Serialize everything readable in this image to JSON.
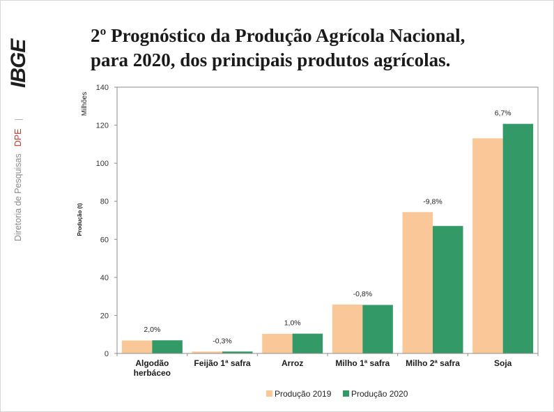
{
  "sidebar": {
    "logo_text": "IBGE",
    "department": "Diretoria de Pesquisas",
    "department_code": "DPE"
  },
  "title": {
    "line1": "2º Prognóstico da Produção Agrícola Nacional,",
    "line2": "para 2020, dos principais produtos agrícolas."
  },
  "colors": {
    "accent_red": "#c0392b",
    "axis": "#8c8c8c"
  },
  "chart_data": {
    "type": "bar",
    "categories": [
      "Algodão herbáceo",
      "Feijão 1ª safra",
      "Arroz",
      "Milho 1ª safra",
      "Milho 2ª safra",
      "Soja"
    ],
    "series": [
      {
        "name": "Produção 2019",
        "color": "#FAC898",
        "values": [
          6.8,
          1.0,
          10.3,
          25.7,
          74.3,
          113.1
        ]
      },
      {
        "name": "Produção 2020",
        "color": "#339966",
        "values": [
          6.9,
          1.0,
          10.4,
          25.5,
          67.0,
          120.7
        ]
      }
    ],
    "change_labels": [
      "2,0%",
      "-0,3%",
      "1,0%",
      "-0,8%",
      "-9,8%",
      "6,7%"
    ],
    "ylabel": "Produção (t)",
    "yunit": "Milhões",
    "ylim": [
      0,
      140
    ],
    "yticks": [
      0,
      20,
      40,
      60,
      80,
      100,
      120,
      140
    ],
    "grid": false,
    "legend_position": "bottom"
  }
}
